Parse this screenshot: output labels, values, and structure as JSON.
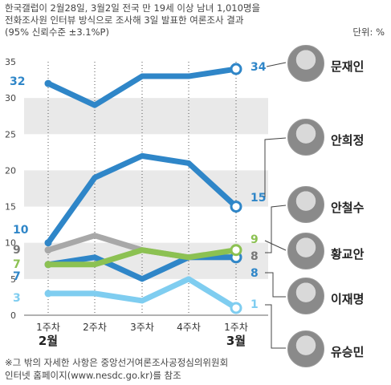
{
  "header": {
    "line1": "한국갤럽이 2월28일, 3월2일 전국 만 19세 이상 남녀 1,010명을",
    "line2": "전화조사원 인터뷰 방식으로 조사해 3일 발표한 여론조사 결과",
    "line3": "(95% 신뢰수준 ±3.1%P)",
    "unit": "단위: %"
  },
  "footnote": {
    "line1": "※그 밖의 자세한 사항은 중앙선거여론조사공정심의위원회",
    "line2": "인터넷 홈페이지(www.nesdc.go.kr)를 참조"
  },
  "chart_data": {
    "type": "line",
    "x": [
      "1주차",
      "2주차",
      "3주차",
      "4주차",
      "1주차"
    ],
    "x_groups": [
      "2월",
      "3월"
    ],
    "ylim": [
      0,
      35
    ],
    "yticks": [
      "0",
      "5",
      "10",
      "15",
      "20",
      "25",
      "30",
      "35"
    ],
    "grid": "horizontal bands",
    "series": [
      {
        "name": "문재인",
        "color": "#2f86c8",
        "values": [
          32,
          29,
          33,
          33,
          34
        ],
        "start_label": "32",
        "end_label": "34"
      },
      {
        "name": "안희정",
        "color": "#2f86c8",
        "values": [
          10,
          19,
          22,
          21,
          15
        ],
        "start_label": "10",
        "end_label": "15"
      },
      {
        "name": "안철수",
        "color": "#a8a8a8",
        "values": [
          9,
          11,
          9,
          8,
          8
        ],
        "start_label": "9",
        "end_label": "8"
      },
      {
        "name": "황교안",
        "color": "#8cc152",
        "values": [
          7,
          7,
          9,
          8,
          9
        ],
        "start_label": "7",
        "end_label": "9"
      },
      {
        "name": "이재명",
        "color": "#2f86c8",
        "values": [
          7,
          8,
          5,
          8,
          8
        ],
        "start_label": "7",
        "end_label": "8"
      },
      {
        "name": "유승민",
        "color": "#7fcdf0",
        "values": [
          3,
          3,
          2,
          5,
          1
        ],
        "start_label": "3",
        "end_label": "1"
      }
    ]
  },
  "people": [
    {
      "name": "문재인",
      "icon": "portrait-icon"
    },
    {
      "name": "안희정",
      "icon": "portrait-icon"
    },
    {
      "name": "안철수",
      "icon": "portrait-icon"
    },
    {
      "name": "황교안",
      "icon": "portrait-icon"
    },
    {
      "name": "이재명",
      "icon": "portrait-icon"
    },
    {
      "name": "유승민",
      "icon": "portrait-icon"
    }
  ]
}
